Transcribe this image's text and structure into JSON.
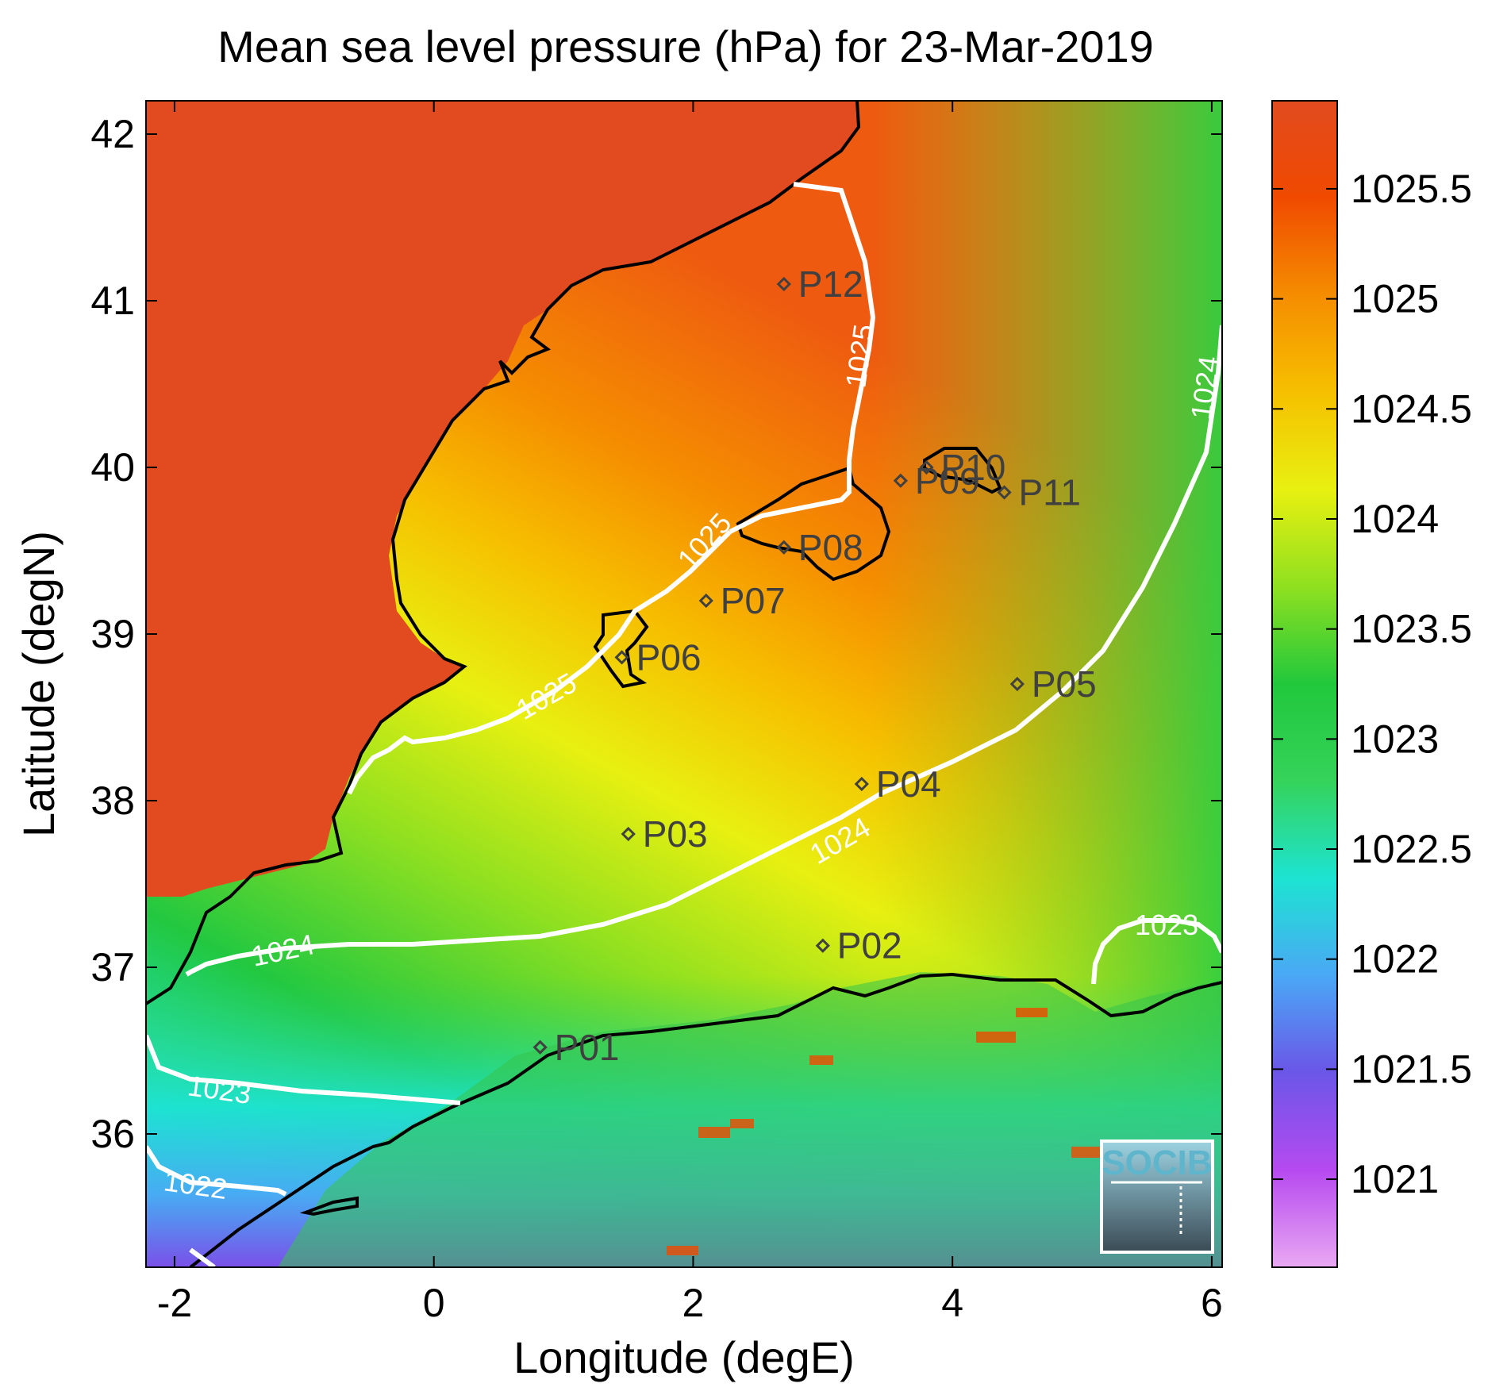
{
  "title": "Mean sea level pressure (hPa) for 23-Mar-2019",
  "xlabel": "Longitude (degE)",
  "ylabel": "Latitude (degN)",
  "x_ticks": [
    "-2",
    "0",
    "2",
    "4",
    "6"
  ],
  "y_ticks": [
    "42",
    "41",
    "40",
    "39",
    "38",
    "37",
    "36"
  ],
  "colorbar": {
    "ticks": [
      "1025.5",
      "1025",
      "1024.5",
      "1024",
      "1023.5",
      "1023",
      "1022.5",
      "1022",
      "1021.5",
      "1021"
    ],
    "range": [
      1020.6,
      1025.9
    ],
    "colors": [
      "#e9a8f2",
      "#b64af0",
      "#6b56e8",
      "#4aa8f5",
      "#1de3d2",
      "#35d35a",
      "#21c83c",
      "#8fe020",
      "#e8f010",
      "#f6c000",
      "#f58d00",
      "#f04a00",
      "#e24b1f"
    ]
  },
  "contours": [
    {
      "level": "1025",
      "label": "1025"
    },
    {
      "level": "1024",
      "label": "1024"
    },
    {
      "level": "1023",
      "label": "1023"
    },
    {
      "level": "1022",
      "label": "1022"
    }
  ],
  "stations": [
    {
      "id": "P01",
      "lon": 0.82,
      "lat": 36.52
    },
    {
      "id": "P02",
      "lon": 3.0,
      "lat": 37.13
    },
    {
      "id": "P03",
      "lon": 1.5,
      "lat": 37.8
    },
    {
      "id": "P04",
      "lon": 3.3,
      "lat": 38.1
    },
    {
      "id": "P05",
      "lon": 4.5,
      "lat": 38.7
    },
    {
      "id": "P06",
      "lon": 1.45,
      "lat": 38.86
    },
    {
      "id": "P07",
      "lon": 2.1,
      "lat": 39.2
    },
    {
      "id": "P08",
      "lon": 2.7,
      "lat": 39.52
    },
    {
      "id": "P09",
      "lon": 3.6,
      "lat": 39.92
    },
    {
      "id": "P10",
      "lon": 3.8,
      "lat": 40.0
    },
    {
      "id": "P11",
      "lon": 4.4,
      "lat": 39.85
    },
    {
      "id": "P12",
      "lon": 2.7,
      "lat": 41.1
    }
  ],
  "logo": {
    "text": "SOCIB"
  }
}
